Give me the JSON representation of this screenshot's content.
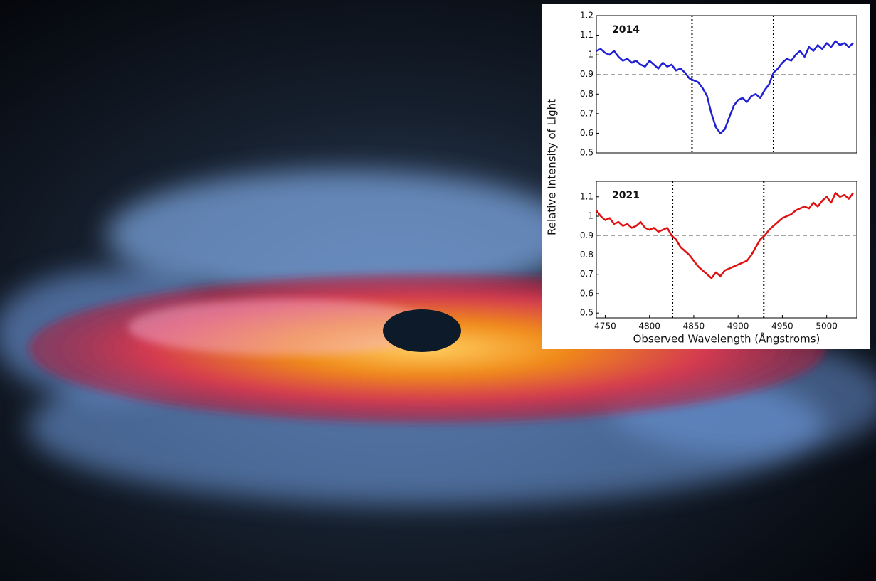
{
  "chart_data": [
    {
      "type": "line",
      "ylabel": "Relative Intensity of Light",
      "x": [
        4740,
        4745,
        4750,
        4755,
        4760,
        4765,
        4770,
        4775,
        4780,
        4785,
        4790,
        4795,
        4800,
        4805,
        4810,
        4815,
        4820,
        4825,
        4830,
        4835,
        4840,
        4845,
        4850,
        4855,
        4860,
        4865,
        4870,
        4875,
        4880,
        4885,
        4890,
        4895,
        4900,
        4905,
        4910,
        4915,
        4920,
        4925,
        4930,
        4935,
        4940,
        4945,
        4950,
        4955,
        4960,
        4965,
        4970,
        4975,
        4980,
        4985,
        4990,
        4995,
        5000,
        5005,
        5010,
        5015,
        5020,
        5025,
        5030
      ],
      "series": [
        {
          "name": "2014",
          "color": "#1f1fd6",
          "values": [
            1.02,
            1.03,
            1.01,
            1.0,
            1.02,
            0.99,
            0.97,
            0.98,
            0.96,
            0.97,
            0.95,
            0.94,
            0.97,
            0.95,
            0.93,
            0.96,
            0.94,
            0.95,
            0.92,
            0.93,
            0.91,
            0.88,
            0.87,
            0.86,
            0.83,
            0.79,
            0.7,
            0.63,
            0.6,
            0.62,
            0.68,
            0.74,
            0.77,
            0.78,
            0.76,
            0.79,
            0.8,
            0.78,
            0.82,
            0.85,
            0.91,
            0.93,
            0.96,
            0.98,
            0.97,
            1.0,
            1.02,
            0.99,
            1.04,
            1.02,
            1.05,
            1.03,
            1.06,
            1.04,
            1.07,
            1.05,
            1.06,
            1.04,
            1.06
          ]
        }
      ],
      "xlim": [
        4740,
        5034
      ],
      "ylim": [
        0.5,
        1.2
      ],
      "yticks": [
        0.5,
        0.6,
        0.7,
        0.8,
        0.9,
        1.0,
        1.1,
        1.2
      ],
      "vlines": [
        4848,
        4940
      ],
      "hline": 0.9
    },
    {
      "type": "line",
      "xlabel": "Observed Wavelength (Ångstroms)",
      "x": [
        4740,
        4745,
        4750,
        4755,
        4760,
        4765,
        4770,
        4775,
        4780,
        4785,
        4790,
        4795,
        4800,
        4805,
        4810,
        4815,
        4820,
        4825,
        4830,
        4835,
        4840,
        4845,
        4850,
        4855,
        4860,
        4865,
        4870,
        4875,
        4880,
        4885,
        4890,
        4895,
        4900,
        4905,
        4910,
        4915,
        4920,
        4925,
        4930,
        4935,
        4940,
        4945,
        4950,
        4955,
        4960,
        4965,
        4970,
        4975,
        4980,
        4985,
        4990,
        4995,
        5000,
        5005,
        5010,
        5015,
        5020,
        5025,
        5030
      ],
      "series": [
        {
          "name": "2021",
          "color": "#e01010",
          "values": [
            1.03,
            1.0,
            0.98,
            0.99,
            0.96,
            0.97,
            0.95,
            0.96,
            0.94,
            0.95,
            0.97,
            0.94,
            0.93,
            0.94,
            0.92,
            0.93,
            0.94,
            0.9,
            0.88,
            0.84,
            0.82,
            0.8,
            0.77,
            0.74,
            0.72,
            0.7,
            0.68,
            0.71,
            0.69,
            0.72,
            0.73,
            0.74,
            0.75,
            0.76,
            0.77,
            0.8,
            0.84,
            0.88,
            0.9,
            0.93,
            0.95,
            0.97,
            0.99,
            1.0,
            1.01,
            1.03,
            1.04,
            1.05,
            1.04,
            1.07,
            1.05,
            1.08,
            1.1,
            1.07,
            1.12,
            1.1,
            1.11,
            1.09,
            1.12
          ]
        }
      ],
      "xlim": [
        4740,
        5034
      ],
      "ylim": [
        0.475,
        1.18
      ],
      "xticks": [
        4750,
        4800,
        4850,
        4900,
        4950,
        5000
      ],
      "yticks": [
        0.5,
        0.6,
        0.7,
        0.8,
        0.9,
        1.0,
        1.1
      ],
      "vlines": [
        4826,
        4929
      ],
      "hline": 0.9
    }
  ]
}
